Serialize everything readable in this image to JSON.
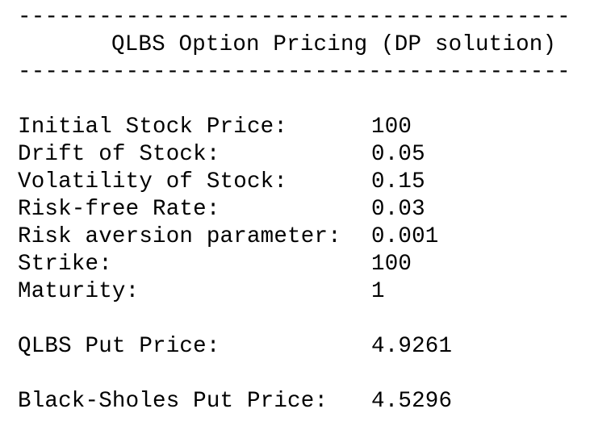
{
  "rule_top": "-----------------------------------------",
  "title": "QLBS Option Pricing (DP solution)",
  "rule_bottom": "-----------------------------------------",
  "parameters": [
    {
      "label": "Initial Stock Price:",
      "value": "100"
    },
    {
      "label": "Drift of Stock:",
      "value": "0.05"
    },
    {
      "label": "Volatility of Stock:",
      "value": "0.15"
    },
    {
      "label": "Risk-free Rate:",
      "value": "0.03"
    },
    {
      "label": "Risk aversion parameter:",
      "value": "0.001"
    },
    {
      "label": "Strike:",
      "value": "100"
    },
    {
      "label": "Maturity:",
      "value": "1"
    }
  ],
  "qlbs_put": {
    "label": "QLBS Put Price:",
    "value": "4.9261"
  },
  "bs_put": {
    "label": "Black-Sholes Put Price:",
    "value": "4.5296"
  }
}
